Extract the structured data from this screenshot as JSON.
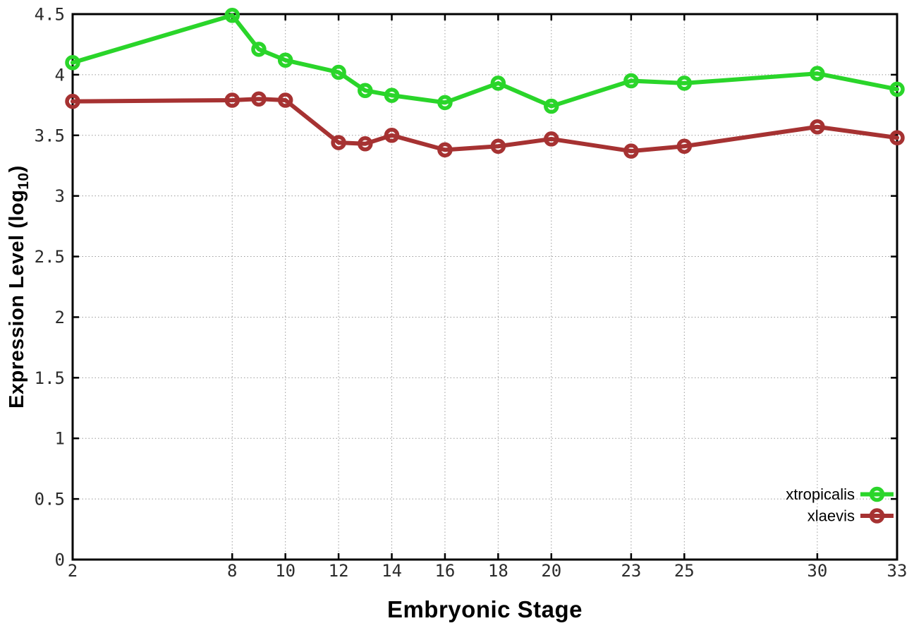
{
  "figure": {
    "background": "#ffffff",
    "axis_color": "#000000",
    "grid_color": "#9b9b9b",
    "tick_label_color": "#2b2b2b",
    "legend_text_color": "#000000"
  },
  "chart_data": {
    "type": "line",
    "title": "",
    "xlabel": "Embryonic Stage",
    "ylabel": "Expression Level (log10)",
    "ylabel_parts": {
      "prefix": "Expression Level (log",
      "sub": "10",
      "suffix": ")"
    },
    "xlim": [
      2,
      33
    ],
    "ylim": [
      0,
      4.5
    ],
    "xticks": [
      2,
      8,
      10,
      12,
      14,
      16,
      18,
      20,
      23,
      25,
      30,
      33
    ],
    "yticks": [
      0,
      0.5,
      1,
      1.5,
      2,
      2.5,
      3,
      3.5,
      4,
      4.5
    ],
    "grid": "dotted",
    "legend_position": "inside-bottom-right",
    "x": [
      2,
      8,
      9,
      10,
      12,
      13,
      14,
      16,
      18,
      20,
      23,
      25,
      30,
      33
    ],
    "series": [
      {
        "name": "xtropicalis",
        "color": "#2ad52a",
        "marker": "open-circle",
        "values": [
          4.1,
          4.49,
          4.21,
          4.12,
          4.02,
          3.87,
          3.83,
          3.77,
          3.93,
          3.74,
          3.95,
          3.93,
          4.01,
          3.88
        ]
      },
      {
        "name": "xlaevis",
        "color": "#a63232",
        "marker": "open-circle",
        "values": [
          3.78,
          3.79,
          3.8,
          3.79,
          3.44,
          3.43,
          3.5,
          3.38,
          3.41,
          3.47,
          3.37,
          3.41,
          3.57,
          3.48
        ]
      }
    ]
  }
}
